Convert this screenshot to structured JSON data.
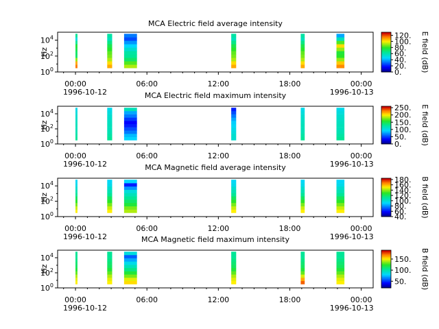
{
  "figure": {
    "x_ticks": [
      "00:00",
      "06:00",
      "12:00",
      "18:00",
      "00:00"
    ],
    "x_date_labels": [
      "1996-10-12",
      "1996-10-13"
    ],
    "y_label": "Hz",
    "y_ticks": [
      "10^0",
      "10^2",
      "10^4"
    ]
  },
  "chart_data": [
    {
      "type": "heatmap",
      "title": "MCA  Electric field average intensity",
      "ylabel": "Hz",
      "colorbar_label": "E field (dB)",
      "colorbar_ticks": [
        "0.",
        "20.",
        "40.",
        "60.",
        "80.",
        "100.",
        "120."
      ],
      "clim": [
        0,
        130
      ],
      "ylim": [
        1,
        100000
      ],
      "yscale": "log",
      "xlim": [
        "1996-10-12T00:00",
        "1996-10-13T00:00"
      ],
      "segments": [
        {
          "start": "00:00",
          "end": "00:10",
          "profile": "E_avg_a"
        },
        {
          "start": "02:40",
          "end": "03:05",
          "profile": "E_avg_b"
        },
        {
          "start": "04:05",
          "end": "05:10",
          "profile": "E_avg_c"
        },
        {
          "start": "13:05",
          "end": "13:30",
          "profile": "E_avg_b"
        },
        {
          "start": "18:55",
          "end": "19:15",
          "profile": "E_avg_b"
        },
        {
          "start": "21:55",
          "end": "22:35",
          "profile": "E_avg_d"
        }
      ]
    },
    {
      "type": "heatmap",
      "title": "MCA  Electric field maximum intensity",
      "ylabel": "Hz",
      "colorbar_label": "E field (dB)",
      "colorbar_ticks": [
        "0.",
        "50.",
        "100.",
        "150.",
        "200.",
        "250."
      ],
      "clim": [
        0,
        260
      ],
      "ylim": [
        1,
        100000
      ],
      "yscale": "log",
      "xlim": [
        "1996-10-12T00:00",
        "1996-10-13T00:00"
      ],
      "segments": [
        {
          "start": "00:00",
          "end": "00:10",
          "profile": "E_max_a"
        },
        {
          "start": "02:40",
          "end": "03:05",
          "profile": "E_max_a"
        },
        {
          "start": "04:05",
          "end": "05:10",
          "profile": "E_max_c"
        },
        {
          "start": "13:05",
          "end": "13:30",
          "profile": "E_max_b"
        },
        {
          "start": "18:55",
          "end": "19:15",
          "profile": "E_max_a"
        },
        {
          "start": "21:55",
          "end": "22:35",
          "profile": "E_max_a"
        }
      ]
    },
    {
      "type": "heatmap",
      "title": "MCA  Magnetic field average intensity",
      "ylabel": "Hz",
      "colorbar_label": "B field (dB)",
      "colorbar_ticks": [
        "40.",
        "60.",
        "80.",
        "100.",
        "120.",
        "140.",
        "160.",
        "180."
      ],
      "clim": [
        40,
        185
      ],
      "ylim": [
        1,
        100000
      ],
      "yscale": "log",
      "xlim": [
        "1996-10-12T00:00",
        "1996-10-13T00:00"
      ],
      "segments": [
        {
          "start": "00:00",
          "end": "00:10",
          "profile": "B_avg_a"
        },
        {
          "start": "02:40",
          "end": "03:05",
          "profile": "B_avg_a"
        },
        {
          "start": "04:05",
          "end": "05:10",
          "profile": "B_avg_c"
        },
        {
          "start": "13:05",
          "end": "13:30",
          "profile": "B_avg_a"
        },
        {
          "start": "18:55",
          "end": "19:15",
          "profile": "B_avg_a"
        },
        {
          "start": "21:55",
          "end": "22:35",
          "profile": "B_avg_a"
        }
      ]
    },
    {
      "type": "heatmap",
      "title": "MCA  Magnetic field maximum intensity",
      "ylabel": "Hz",
      "colorbar_label": "B field (dB)",
      "colorbar_ticks": [
        "50.",
        "100.",
        "150."
      ],
      "clim": [
        20,
        190
      ],
      "ylim": [
        1,
        100000
      ],
      "yscale": "log",
      "xlim": [
        "1996-10-12T00:00",
        "1996-10-13T00:00"
      ],
      "segments": [
        {
          "start": "00:00",
          "end": "00:10",
          "profile": "B_max_a"
        },
        {
          "start": "02:40",
          "end": "03:05",
          "profile": "B_max_a"
        },
        {
          "start": "04:05",
          "end": "05:10",
          "profile": "B_max_c"
        },
        {
          "start": "13:05",
          "end": "13:30",
          "profile": "B_max_a"
        },
        {
          "start": "18:55",
          "end": "19:15",
          "profile": "B_max_b"
        },
        {
          "start": "21:55",
          "end": "22:35",
          "profile": "B_max_a"
        }
      ]
    }
  ]
}
